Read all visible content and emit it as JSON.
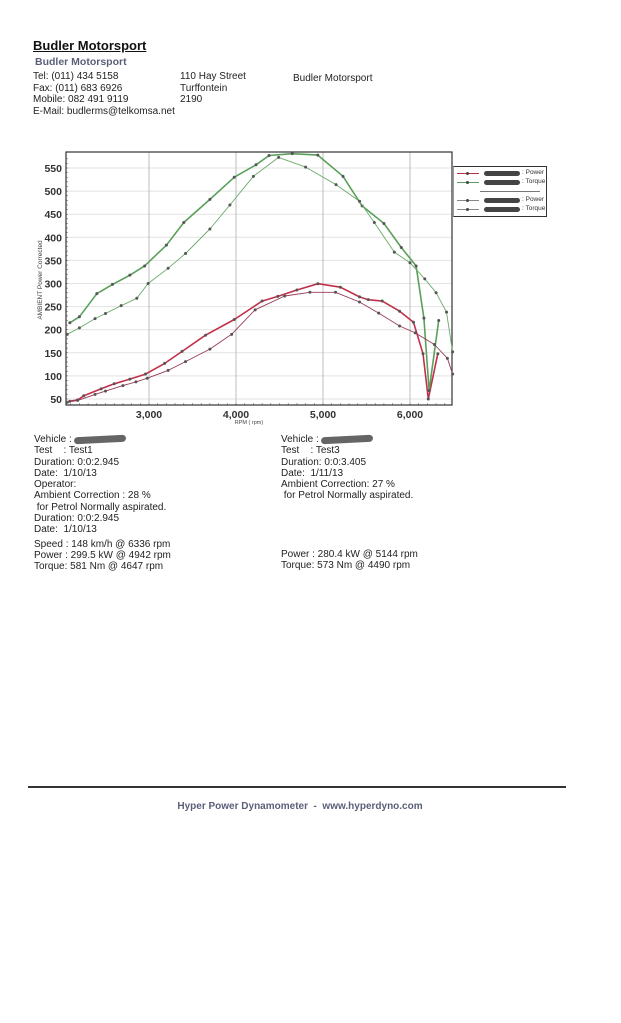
{
  "header": {
    "company_title": "Budler Motorsport",
    "company_subtitle": "Budler Motorsport",
    "contact": [
      "Tel: (011) 434 5158",
      "Fax: (011) 683 6926",
      "Mobile: 082 491 9119",
      "E-Mail: budlerms@telkomsa.net"
    ],
    "address": [
      "110 Hay Street",
      "Turffontein",
      "2190"
    ],
    "right_name": "Budler Motorsport"
  },
  "chart_data": {
    "type": "line",
    "title": "",
    "xlabel": "RPM ( rpm)",
    "ylabel": "AMBIENT Power Corrected",
    "xlim": [
      2050,
      6490
    ],
    "ylim": [
      40,
      580
    ],
    "x_ticks": [
      3000,
      4000,
      5000,
      6000
    ],
    "x_tick_labels": [
      "3,000",
      "4,000",
      "5,000",
      "6,000"
    ],
    "y_ticks": [
      50,
      100,
      150,
      200,
      250,
      300,
      350,
      400,
      450,
      500,
      550
    ],
    "grid": true,
    "legend_position": "right",
    "legend": [
      "[redacted]: Power",
      "[redacted]: Torque",
      "[redacted]: Power",
      "[redacted]: Torque"
    ],
    "series": [
      {
        "name": "Test1 Power",
        "color": "#c0304a",
        "width": 1.6,
        "points": [
          [
            2090,
            45
          ],
          [
            2180,
            48
          ],
          [
            2250,
            57
          ],
          [
            2450,
            72
          ],
          [
            2600,
            83
          ],
          [
            2780,
            93
          ],
          [
            2960,
            104
          ],
          [
            3180,
            127
          ],
          [
            3380,
            153
          ],
          [
            3650,
            188
          ],
          [
            3980,
            222
          ],
          [
            4300,
            262
          ],
          [
            4480,
            272
          ],
          [
            4700,
            286
          ],
          [
            4942,
            299.5
          ],
          [
            5200,
            292
          ],
          [
            5420,
            271
          ],
          [
            5520,
            265
          ],
          [
            5680,
            262
          ],
          [
            5880,
            240
          ],
          [
            6040,
            216
          ],
          [
            6150,
            148
          ],
          [
            6210,
            50
          ],
          [
            6320,
            148
          ]
        ]
      },
      {
        "name": "Test1 Torque",
        "color": "#5aa05a",
        "width": 1.6,
        "points": [
          [
            2090,
            215
          ],
          [
            2200,
            228
          ],
          [
            2400,
            278
          ],
          [
            2580,
            298
          ],
          [
            2780,
            318
          ],
          [
            2950,
            338
          ],
          [
            3200,
            383
          ],
          [
            3400,
            432
          ],
          [
            3700,
            482
          ],
          [
            3980,
            530
          ],
          [
            4230,
            557
          ],
          [
            4380,
            577
          ],
          [
            4647,
            581
          ],
          [
            4940,
            578
          ],
          [
            5230,
            532
          ],
          [
            5450,
            468
          ],
          [
            5700,
            430
          ],
          [
            5900,
            378
          ],
          [
            6070,
            338
          ],
          [
            6160,
            225
          ],
          [
            6220,
            68
          ],
          [
            6330,
            220
          ]
        ]
      },
      {
        "name": "Test3 Power",
        "color": "#9a3a55",
        "width": 0.9,
        "points": [
          [
            2060,
            43
          ],
          [
            2180,
            47
          ],
          [
            2380,
            60
          ],
          [
            2500,
            67
          ],
          [
            2700,
            79
          ],
          [
            2850,
            87
          ],
          [
            2980,
            95
          ],
          [
            3220,
            112
          ],
          [
            3420,
            131
          ],
          [
            3700,
            158
          ],
          [
            3950,
            190
          ],
          [
            4220,
            243
          ],
          [
            4560,
            273
          ],
          [
            4850,
            281
          ],
          [
            5144,
            281
          ],
          [
            5420,
            260
          ],
          [
            5640,
            236
          ],
          [
            5880,
            208
          ],
          [
            6060,
            193
          ],
          [
            6280,
            168
          ],
          [
            6430,
            138
          ],
          [
            6490,
            104
          ]
        ]
      },
      {
        "name": "Test3 Torque",
        "color": "#6aaa6a",
        "width": 0.9,
        "points": [
          [
            2060,
            190
          ],
          [
            2200,
            204
          ],
          [
            2380,
            224
          ],
          [
            2500,
            235
          ],
          [
            2680,
            252
          ],
          [
            2860,
            268
          ],
          [
            2990,
            300
          ],
          [
            3220,
            333
          ],
          [
            3420,
            365
          ],
          [
            3700,
            418
          ],
          [
            3930,
            470
          ],
          [
            4200,
            532
          ],
          [
            4490,
            573
          ],
          [
            4800,
            552
          ],
          [
            5150,
            514
          ],
          [
            5420,
            478
          ],
          [
            5590,
            432
          ],
          [
            5820,
            368
          ],
          [
            6000,
            345
          ],
          [
            6170,
            310
          ],
          [
            6300,
            280
          ],
          [
            6420,
            238
          ],
          [
            6490,
            152
          ]
        ]
      }
    ]
  },
  "test1": {
    "rows": [
      "Vehicle :",
      "Test    : Test1",
      "Duration: 0:0:2.945",
      "Date:  1/10/13",
      "Operator:",
      "Ambient Correction : 28 %",
      " for Petrol Normally aspirated.",
      "Duration: 0:0:2.945",
      "Date:  1/10/13"
    ],
    "results": [
      "Speed : 148 km/h @ 6336 rpm",
      "Power : 299.5 kW @ 4942 rpm",
      "Torque: 581 Nm @ 4647 rpm"
    ]
  },
  "test3": {
    "rows": [
      "Vehicle :",
      "Test    : Test3",
      "Duration: 0:0:3.405",
      "Date:  1/11/13",
      "Ambient Correction: 27 %",
      " for Petrol Normally aspirated."
    ],
    "results": [
      "Power : 280.4 kW @ 5144 rpm",
      "Torque: 573 Nm @ 4490 rpm"
    ]
  },
  "legend": {
    "items": [
      {
        "label": ": Power",
        "color": "#c0304a"
      },
      {
        "label": ": Torque",
        "color": "#5aa05a"
      },
      {
        "label": ": Power",
        "color": "#888888"
      },
      {
        "label": ": Torque",
        "color": "#888888"
      }
    ]
  },
  "footer": {
    "text": "Hyper Power Dynamometer  -  www.hyperdyno.com"
  }
}
